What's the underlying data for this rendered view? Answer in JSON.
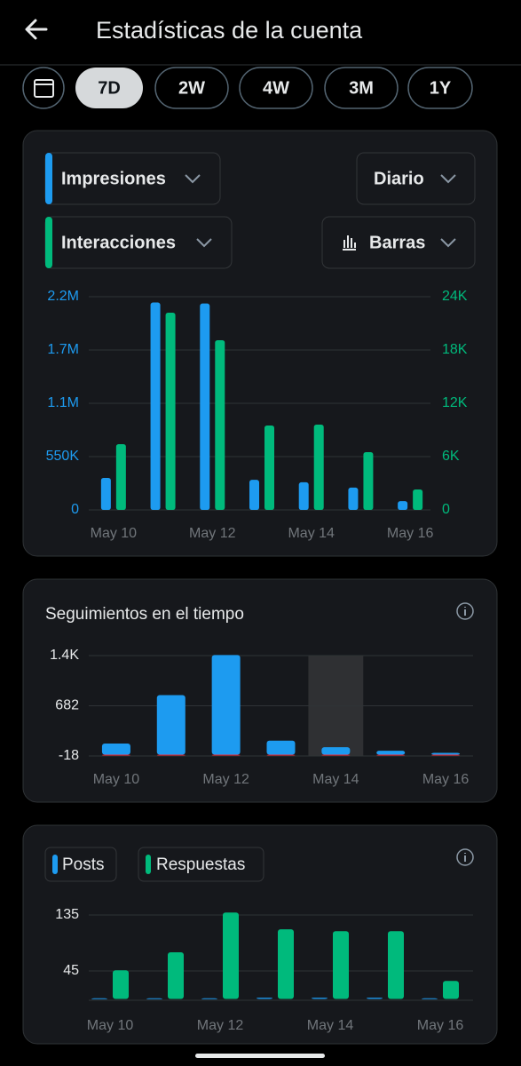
{
  "header": {
    "title": "Estadísticas de la cuenta"
  },
  "periods": [
    "7D",
    "2W",
    "4W",
    "3M",
    "1Y"
  ],
  "controls": {
    "interval": "Diario",
    "style": "Barras"
  },
  "chart_data": [
    {
      "type": "bar",
      "barmode": "grouped",
      "categories": [
        "May 10",
        null,
        "May 12",
        null,
        "May 14",
        null,
        "May 16"
      ],
      "series": [
        {
          "name": "Impresiones",
          "color": "#1d9bf0",
          "values": [
            330000,
            2140000,
            2130000,
            310000,
            285000,
            230000,
            90000
          ]
        },
        {
          "name": "Interacciones",
          "color": "#00ba7c",
          "axis": "y2",
          "values": [
            7400,
            22200,
            19100,
            9500,
            9600,
            6500,
            2300
          ]
        }
      ],
      "ylim": [
        0,
        2200000
      ],
      "yticks": [
        0,
        {
          "value": 550000,
          "label": "550K"
        },
        {
          "value": 1100000,
          "label": "1.1M"
        },
        {
          "value": 1650000,
          "label": "1.7M"
        },
        {
          "value": 2200000,
          "label": "2.2M"
        }
      ],
      "y2lim": [
        0,
        24000
      ],
      "y2ticks": [
        0,
        {
          "value": 6000,
          "label": "6K"
        },
        {
          "value": 12000,
          "label": "12K"
        },
        {
          "value": 18000,
          "label": "18K"
        },
        {
          "value": 24000,
          "label": "24K"
        }
      ],
      "grid": true
    },
    {
      "type": "bar",
      "barmode": "overlay",
      "title": "Seguimientos en el tiempo",
      "categories": [
        "May 10",
        null,
        "May 12",
        null,
        "May 14",
        null,
        "May 16"
      ],
      "series": [
        {
          "color": "#1d9bf0",
          "values": [
            155,
            830,
            1390,
            195,
            105,
            55,
            25
          ]
        },
        {
          "color": "#f4212e",
          "values": [
            0,
            -10,
            -10,
            0,
            -8,
            -8,
            0
          ]
        }
      ],
      "ylim": [
        -18,
        1382
      ],
      "yticks": [
        -18,
        682,
        {
          "value": 1382,
          "label": "1.4K"
        }
      ],
      "grid": true
    },
    {
      "type": "bar",
      "barmode": "grouped",
      "categories": [
        "May 10",
        null,
        "May 12",
        null,
        "May 14",
        null,
        "May 16"
      ],
      "series": [
        {
          "name": "Posts",
          "color": "#1d9bf0",
          "values": [
            1,
            1,
            1,
            2,
            2,
            2,
            1
          ]
        },
        {
          "name": "Respuestas",
          "color": "#00ba7c",
          "values": [
            46,
            75,
            139,
            112,
            109,
            109,
            29
          ]
        }
      ],
      "ylim": [
        0,
        150
      ],
      "yticks": [
        45,
        135
      ],
      "grid": true
    }
  ]
}
